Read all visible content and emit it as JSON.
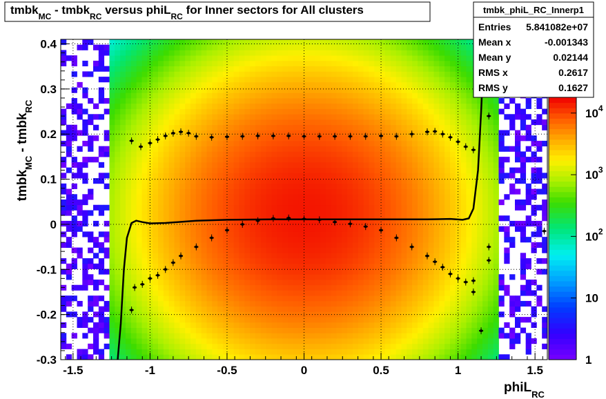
{
  "title": {
    "p1": "tmbk",
    "s1": "MC",
    "p2": " - tmbk",
    "s2": "RC",
    "p3": " versus phiL",
    "s3": "RC",
    "p4": " for Inner sectors for All clusters"
  },
  "stats": {
    "name": "tmbk_phiL_RC_Innerp1",
    "rows": [
      {
        "label": "Entries",
        "value": "5.841082e+07"
      },
      {
        "label": "Mean x",
        "value": "-0.001343"
      },
      {
        "label": "Mean y",
        "value": "0.02144"
      },
      {
        "label": "RMS x",
        "value": "0.2617"
      },
      {
        "label": "RMS y",
        "value": "0.1627"
      }
    ]
  },
  "xaxis": {
    "main": "phiL",
    "sub": "RC"
  },
  "yaxis": {
    "main": "tmbk",
    "sub1": "MC",
    "mid": " - tmbk",
    "sub2": "RC"
  },
  "palette": {
    "labels": [
      {
        "base": "1",
        "exp": "",
        "v": 1
      },
      {
        "base": "10",
        "exp": "",
        "v": 10
      },
      {
        "base": "10",
        "exp": "2",
        "v": 100
      },
      {
        "base": "10",
        "exp": "3",
        "v": 1000
      },
      {
        "base": "10",
        "exp": "4",
        "v": 10000
      }
    ]
  },
  "chart_data": {
    "type": "heatmap",
    "xlim": [
      -1.58,
      1.58
    ],
    "ylim": [
      -0.3,
      0.41
    ],
    "zlim": [
      1,
      18000
    ],
    "zscale": "log",
    "xticks": [
      "-1.5",
      "-1",
      "-0.5",
      "0",
      "0.5",
      "1",
      "1.5"
    ],
    "xtick_values": [
      -1.5,
      -1,
      -0.5,
      0,
      0.5,
      1,
      1.5
    ],
    "yticks": [
      "-0.3",
      "-0.2",
      "-0.1",
      "0",
      "0.1",
      "0.2",
      "0.3",
      "0.4"
    ],
    "ytick_values": [
      -0.3,
      -0.2,
      -0.1,
      0,
      0.1,
      0.2,
      0.3,
      0.4
    ],
    "grid": true,
    "density_model": {
      "peak": 15000,
      "x_sigma": 0.52,
      "x_edge": 1.25,
      "y_center": 0.02,
      "y_sigma": 0.17
    },
    "upper_band": [
      [
        -1.12,
        0.185
      ],
      [
        -1.06,
        0.172
      ],
      [
        -1.0,
        0.18
      ],
      [
        -0.95,
        0.188
      ],
      [
        -0.9,
        0.196
      ],
      [
        -0.85,
        0.202
      ],
      [
        -0.8,
        0.205
      ],
      [
        -0.75,
        0.202
      ],
      [
        -0.7,
        0.195
      ],
      [
        -0.6,
        0.193
      ],
      [
        -0.5,
        0.194
      ],
      [
        -0.4,
        0.195
      ],
      [
        -0.3,
        0.196
      ],
      [
        -0.2,
        0.196
      ],
      [
        -0.1,
        0.196
      ],
      [
        0.0,
        0.195
      ],
      [
        0.1,
        0.195
      ],
      [
        0.2,
        0.195
      ],
      [
        0.3,
        0.195
      ],
      [
        0.4,
        0.195
      ],
      [
        0.5,
        0.196
      ],
      [
        0.6,
        0.195
      ],
      [
        0.7,
        0.2
      ],
      [
        0.8,
        0.205
      ],
      [
        0.85,
        0.206
      ],
      [
        0.9,
        0.2
      ],
      [
        0.95,
        0.193
      ],
      [
        1.0,
        0.183
      ],
      [
        1.05,
        0.172
      ],
      [
        1.1,
        0.165
      ]
    ],
    "lower_band": [
      [
        -1.12,
        -0.19
      ],
      [
        -1.1,
        -0.14
      ],
      [
        -1.05,
        -0.133
      ],
      [
        -1.0,
        -0.12
      ],
      [
        -0.95,
        -0.113
      ],
      [
        -0.9,
        -0.1
      ],
      [
        -0.85,
        -0.085
      ],
      [
        -0.8,
        -0.07
      ],
      [
        -0.7,
        -0.05
      ],
      [
        -0.6,
        -0.03
      ],
      [
        -0.5,
        -0.013
      ],
      [
        -0.4,
        0.0
      ],
      [
        -0.3,
        0.008
      ],
      [
        -0.2,
        0.013
      ],
      [
        -0.1,
        0.014
      ],
      [
        0.0,
        0.012
      ],
      [
        0.1,
        0.01
      ],
      [
        0.2,
        0.005
      ],
      [
        0.3,
        0.001
      ],
      [
        0.4,
        -0.005
      ],
      [
        0.5,
        -0.013
      ],
      [
        0.6,
        -0.03
      ],
      [
        0.7,
        -0.05
      ],
      [
        0.8,
        -0.07
      ],
      [
        0.85,
        -0.083
      ],
      [
        0.9,
        -0.095
      ],
      [
        0.95,
        -0.11
      ],
      [
        1.0,
        -0.12
      ],
      [
        1.05,
        -0.128
      ],
      [
        1.1,
        -0.125
      ],
      [
        1.1,
        -0.15
      ],
      [
        1.15,
        -0.236
      ],
      [
        1.2,
        -0.05
      ],
      [
        1.2,
        0.24
      ],
      [
        1.2,
        -0.08
      ],
      [
        1.56,
        -0.015
      ]
    ],
    "fit_curve": [
      [
        -1.21,
        -0.3
      ],
      [
        -1.19,
        -0.22
      ],
      [
        -1.17,
        -0.1
      ],
      [
        -1.15,
        -0.03
      ],
      [
        -1.12,
        0.003
      ],
      [
        -1.09,
        0.008
      ],
      [
        -1.05,
        0.005
      ],
      [
        -1.0,
        0.002
      ],
      [
        -0.9,
        0.003
      ],
      [
        -0.7,
        0.008
      ],
      [
        -0.5,
        0.01
      ],
      [
        -0.2,
        0.011
      ],
      [
        0.0,
        0.011
      ],
      [
        0.2,
        0.011
      ],
      [
        0.5,
        0.011
      ],
      [
        0.8,
        0.011
      ],
      [
        0.95,
        0.012
      ],
      [
        1.03,
        0.01
      ],
      [
        1.07,
        0.013
      ],
      [
        1.1,
        0.035
      ],
      [
        1.13,
        0.12
      ],
      [
        1.15,
        0.25
      ],
      [
        1.17,
        0.41
      ]
    ]
  }
}
